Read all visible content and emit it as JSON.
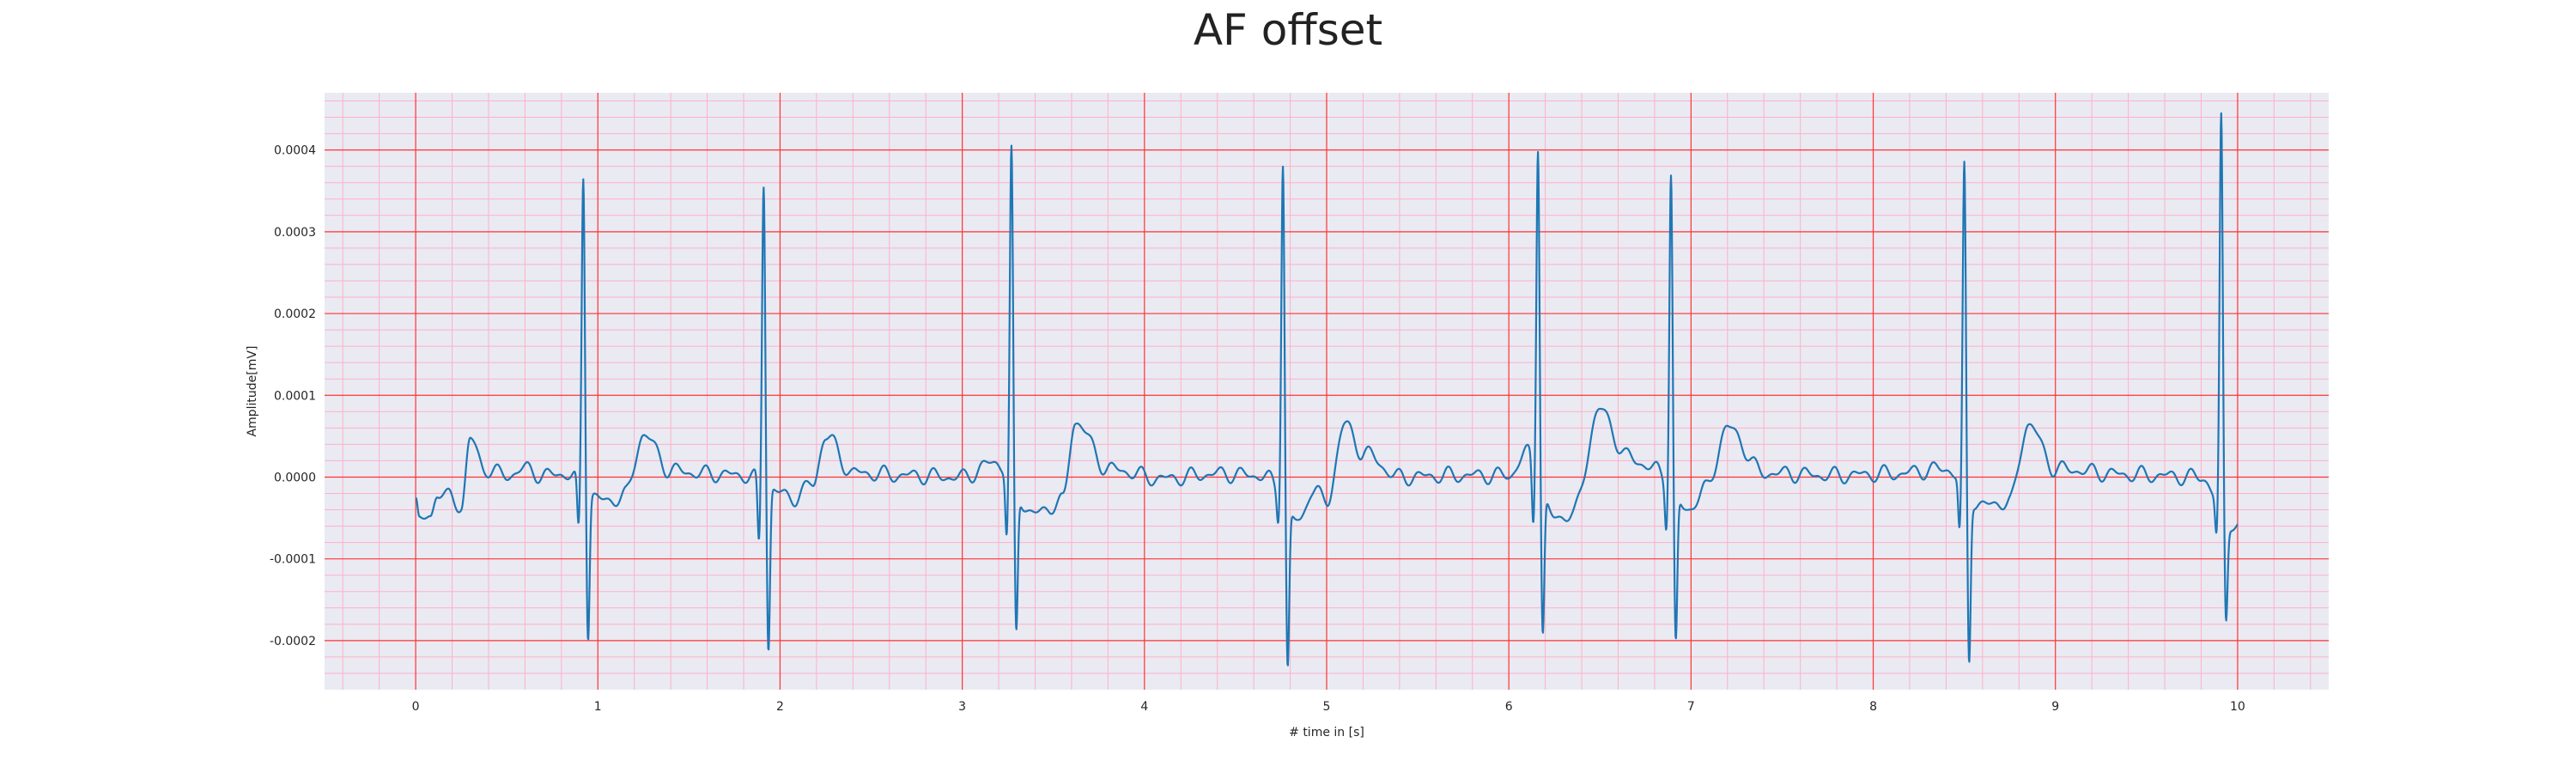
{
  "chart_data": {
    "type": "line",
    "title": "AF offset",
    "xlabel": "# time in [s]",
    "ylabel": "Amplitude[mV]",
    "xlim": [
      -0.5,
      10.5
    ],
    "ylim": [
      -0.00026,
      0.00047
    ],
    "x_ticks": [
      0,
      1,
      2,
      3,
      4,
      5,
      6,
      7,
      8,
      9,
      10
    ],
    "x_tick_labels": [
      "0",
      "1",
      "2",
      "3",
      "4",
      "5",
      "6",
      "7",
      "8",
      "9",
      "10"
    ],
    "y_ticks": [
      -0.0002,
      -0.0001,
      0,
      0.0001,
      0.0002,
      0.0003,
      0.0004
    ],
    "y_tick_labels": [
      "-0.0002",
      "-0.0001",
      "0.0000",
      "0.0001",
      "0.0002",
      "0.0003",
      "0.0004"
    ],
    "grid": "major red, minor pink",
    "background_color": "#eaeaf2",
    "major_grid_color": "#ff3333",
    "minor_grid_color": "#ffb0c8",
    "line_color": "#1f77b4",
    "beats": [
      {
        "r_time": 0.92,
        "r_peak": 0.00037,
        "s_trough": -0.000188,
        "q_trough": -7.5e-05
      },
      {
        "r_time": 1.91,
        "r_peak": 0.000363,
        "s_trough": -0.000208,
        "q_trough": -8.8e-05
      },
      {
        "r_time": 3.27,
        "r_peak": 0.000397,
        "s_trough": -0.000183,
        "q_trough": -8.2e-05
      },
      {
        "r_time": 4.76,
        "r_peak": 0.000388,
        "s_trough": -0.000228,
        "q_trough": -6.3e-05
      },
      {
        "r_time": 6.16,
        "r_peak": 0.00041,
        "s_trough": -0.000173,
        "q_trough": -7.5e-05
      },
      {
        "r_time": 6.89,
        "r_peak": 0.000372,
        "s_trough": -0.000198,
        "q_trough": -6.8e-05
      },
      {
        "r_time": 8.5,
        "r_peak": 0.000378,
        "s_trough": -0.000218,
        "q_trough": -7.8e-05
      },
      {
        "r_time": 9.91,
        "r_peak": 0.000437,
        "s_trough": -0.000168,
        "q_trough": -8.8e-05
      }
    ],
    "baseline_points": [
      {
        "x": 0.0,
        "y": -3e-05
      },
      {
        "x": 0.02,
        "y": -5.5e-05
      },
      {
        "x": 0.08,
        "y": -4.8e-05
      },
      {
        "x": 0.12,
        "y": -1.8e-05
      },
      {
        "x": 0.18,
        "y": -2.5e-05
      },
      {
        "x": 0.25,
        "y": -3.5e-05
      },
      {
        "x": 0.3,
        "y": 4.6e-05
      },
      {
        "x": 0.38,
        "y": 1e-05
      },
      {
        "x": 0.5,
        "y": 2e-06
      },
      {
        "x": 0.6,
        "y": 1e-05
      },
      {
        "x": 0.7,
        "y": 2e-06
      },
      {
        "x": 0.82,
        "y": 4e-06
      },
      {
        "x": 1.05,
        "y": -3e-05
      },
      {
        "x": 1.15,
        "y": -2.2e-05
      },
      {
        "x": 1.25,
        "y": 5.2e-05
      },
      {
        "x": 1.4,
        "y": 8e-06
      },
      {
        "x": 1.6,
        "y": 4e-06
      },
      {
        "x": 1.8,
        "y": 2e-06
      },
      {
        "x": 2.08,
        "y": -2.5e-05
      },
      {
        "x": 2.18,
        "y": -8e-06
      },
      {
        "x": 2.25,
        "y": 5e-05
      },
      {
        "x": 2.4,
        "y": 5e-06
      },
      {
        "x": 2.7,
        "y": 2e-06
      },
      {
        "x": 3.0,
        "y": 0.0
      },
      {
        "x": 3.18,
        "y": 1.8e-05
      },
      {
        "x": 3.4,
        "y": -4.5e-05
      },
      {
        "x": 3.55,
        "y": -3e-05
      },
      {
        "x": 3.62,
        "y": 6.8e-05
      },
      {
        "x": 3.8,
        "y": 1e-05
      },
      {
        "x": 4.1,
        "y": -2e-06
      },
      {
        "x": 4.4,
        "y": 4e-06
      },
      {
        "x": 4.65,
        "y": 2e-06
      },
      {
        "x": 4.85,
        "y": -5.5e-05
      },
      {
        "x": 4.92,
        "y": -1.5e-05
      },
      {
        "x": 5.0,
        "y": -3e-05
      },
      {
        "x": 5.1,
        "y": 6.4e-05
      },
      {
        "x": 5.2,
        "y": 3e-05
      },
      {
        "x": 5.4,
        "y": 0.0
      },
      {
        "x": 5.7,
        "y": 2e-06
      },
      {
        "x": 6.0,
        "y": 2e-06
      },
      {
        "x": 6.1,
        "y": 3e-05
      },
      {
        "x": 6.25,
        "y": -5e-05
      },
      {
        "x": 6.35,
        "y": -4.5e-05
      },
      {
        "x": 6.5,
        "y": 8.2e-05
      },
      {
        "x": 6.65,
        "y": 2.5e-05
      },
      {
        "x": 6.8,
        "y": 1e-05
      },
      {
        "x": 6.98,
        "y": -4e-05
      },
      {
        "x": 7.08,
        "y": -1.5e-05
      },
      {
        "x": 7.2,
        "y": 6e-05
      },
      {
        "x": 7.4,
        "y": 5e-06
      },
      {
        "x": 7.8,
        "y": 2e-06
      },
      {
        "x": 8.1,
        "y": 4e-06
      },
      {
        "x": 8.4,
        "y": 1e-05
      },
      {
        "x": 8.6,
        "y": -3.5e-05
      },
      {
        "x": 8.75,
        "y": -3e-05
      },
      {
        "x": 8.85,
        "y": 6.5e-05
      },
      {
        "x": 9.0,
        "y": 1e-05
      },
      {
        "x": 9.4,
        "y": 3e-06
      },
      {
        "x": 9.8,
        "y": 0.0
      },
      {
        "x": 9.96,
        "y": -5.5e-05
      },
      {
        "x": 10.0,
        "y": -6.2e-05
      }
    ]
  }
}
